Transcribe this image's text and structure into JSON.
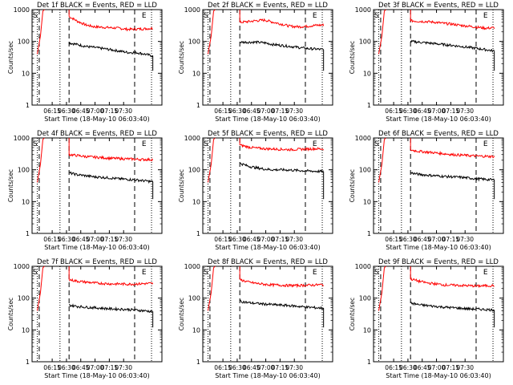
{
  "figure": {
    "start_time_label": "Start Time (18-May-10 06:03:40)",
    "ylabel": "Counts/sec",
    "yticks": [
      "1",
      "10",
      "100",
      "1000"
    ],
    "xticks": [
      "06:15",
      "06:30",
      "06:45",
      "07:00",
      "07:15",
      "07:30"
    ],
    "marker_S": "S",
    "marker_E": "E",
    "colors": {
      "events": "#000000",
      "lld": "#ff0000"
    }
  },
  "chart_data": [
    {
      "type": "line",
      "title": "Det 1f BLACK = Events, RED = LLD",
      "yscale": "log",
      "ylim": [
        1,
        1000
      ],
      "series": [
        {
          "values": [
            600,
            430,
            330,
            290,
            280,
            270,
            260,
            240,
            245,
            250,
            260
          ]
        },
        {
          "values": [
            90,
            80,
            70,
            65,
            60,
            55,
            50,
            45,
            45,
            40,
            35
          ]
        }
      ]
    },
    {
      "type": "line",
      "title": "Det 2f BLACK = Events, RED = LLD",
      "yscale": "log",
      "ylim": [
        1,
        1000
      ],
      "series": [
        {
          "values": [
            400,
            420,
            450,
            470,
            400,
            350,
            300,
            290,
            300,
            320,
            330
          ]
        },
        {
          "values": [
            95,
            95,
            95,
            90,
            80,
            75,
            70,
            65,
            60,
            58,
            55
          ]
        }
      ]
    },
    {
      "type": "line",
      "title": "Det 3f BLACK = Events, RED = LLD",
      "yscale": "log",
      "ylim": [
        1,
        1000
      ],
      "series": [
        {
          "values": [
            450,
            430,
            420,
            400,
            370,
            350,
            320,
            300,
            280,
            260,
            270
          ]
        },
        {
          "values": [
            100,
            95,
            90,
            85,
            80,
            75,
            70,
            65,
            60,
            55,
            50
          ]
        }
      ]
    },
    {
      "type": "line",
      "title": "Det 4f BLACK = Events, RED = LLD",
      "yscale": "log",
      "ylim": [
        1,
        1000
      ],
      "series": [
        {
          "values": [
            300,
            280,
            260,
            250,
            240,
            230,
            225,
            220,
            215,
            210,
            210
          ]
        },
        {
          "values": [
            80,
            70,
            65,
            60,
            58,
            55,
            52,
            50,
            48,
            45,
            42
          ]
        }
      ]
    },
    {
      "type": "line",
      "title": "Det 5f BLACK = Events, RED = LLD",
      "yscale": "log",
      "ylim": [
        1,
        1000
      ],
      "series": [
        {
          "values": [
            600,
            520,
            480,
            460,
            450,
            440,
            430,
            440,
            450,
            460,
            450
          ]
        },
        {
          "values": [
            160,
            130,
            115,
            105,
            100,
            100,
            98,
            95,
            92,
            90,
            88
          ]
        }
      ]
    },
    {
      "type": "line",
      "title": "Det 6f BLACK = Events, RED = LLD",
      "yscale": "log",
      "ylim": [
        1,
        1000
      ],
      "series": [
        {
          "values": [
            420,
            380,
            360,
            340,
            320,
            300,
            290,
            280,
            270,
            265,
            260
          ]
        },
        {
          "values": [
            80,
            72,
            68,
            65,
            62,
            60,
            58,
            55,
            52,
            50,
            48
          ]
        }
      ]
    },
    {
      "type": "line",
      "title": "Det 7f BLACK = Events, RED = LLD",
      "yscale": "log",
      "ylim": [
        1,
        1000
      ],
      "series": [
        {
          "values": [
            380,
            340,
            320,
            300,
            290,
            280,
            280,
            275,
            280,
            285,
            290
          ]
        },
        {
          "values": [
            60,
            55,
            52,
            50,
            48,
            46,
            45,
            44,
            42,
            40,
            38
          ]
        }
      ]
    },
    {
      "type": "line",
      "title": "Det 8f BLACK = Events, RED = LLD",
      "yscale": "log",
      "ylim": [
        1,
        1000
      ],
      "series": [
        {
          "values": [
            380,
            320,
            290,
            270,
            260,
            255,
            250,
            250,
            255,
            260,
            265
          ]
        },
        {
          "values": [
            80,
            72,
            68,
            65,
            62,
            60,
            58,
            55,
            52,
            50,
            48
          ]
        }
      ]
    },
    {
      "type": "line",
      "title": "Det 9f BLACK = Events, RED = LLD",
      "yscale": "log",
      "ylim": [
        1,
        1000
      ],
      "series": [
        {
          "values": [
            400,
            340,
            300,
            280,
            260,
            255,
            250,
            245,
            240,
            245,
            250
          ]
        },
        {
          "values": [
            70,
            62,
            58,
            55,
            52,
            50,
            48,
            46,
            45,
            44,
            42
          ]
        }
      ]
    }
  ]
}
